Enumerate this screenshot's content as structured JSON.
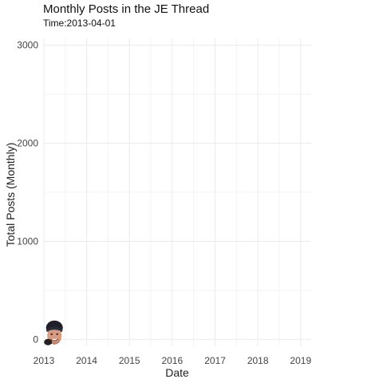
{
  "chart_data": {
    "type": "line",
    "title": "Monthly Posts in the JE Thread",
    "subtitle": "Time:2013-04-01",
    "xlabel": "Date",
    "ylabel": "Total Posts (Monthly)",
    "x_ticks": [
      "2013",
      "2014",
      "2015",
      "2016",
      "2017",
      "2018",
      "2019"
    ],
    "y_ticks": [
      0,
      1000,
      2000,
      3000
    ],
    "xlim": [
      "2013-01-01",
      "2019-04-01"
    ],
    "ylim": [
      -70,
      3070
    ],
    "grid": true,
    "legend": "none",
    "series": [
      {
        "x": [
          "2013-04-01"
        ],
        "y": [
          38
        ]
      }
    ],
    "marker_icon": "face-photo-icon"
  }
}
